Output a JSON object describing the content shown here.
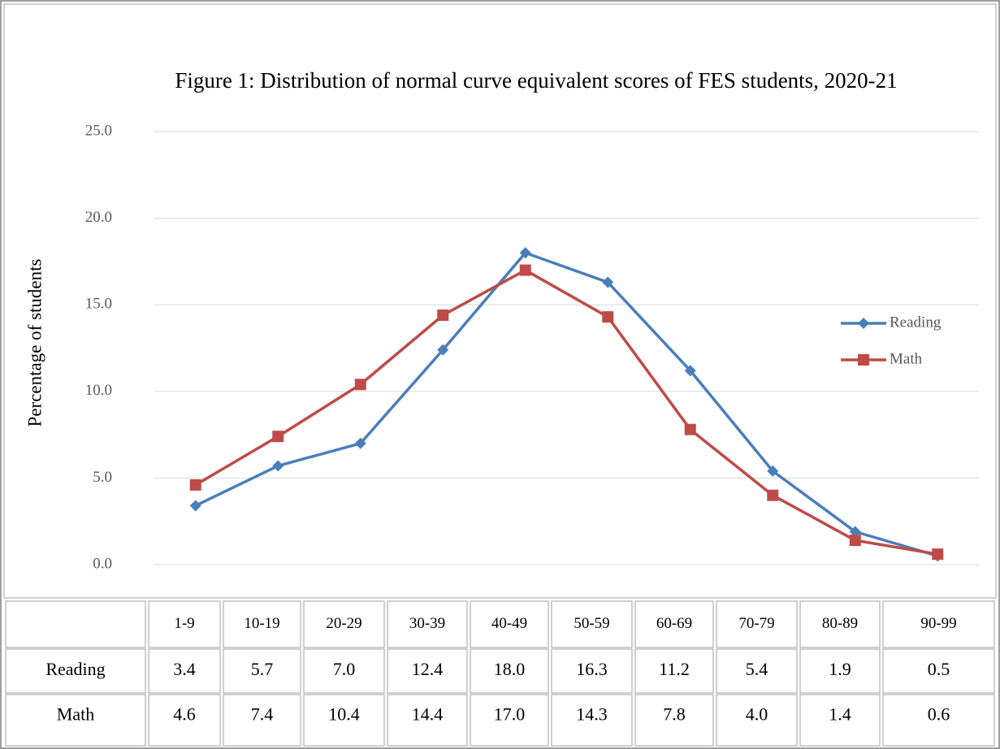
{
  "chart_data": {
    "type": "line",
    "title": "Figure 1: Distribution of normal curve equivalent scores of FES students, 2020-21",
    "y_label": "Percentage of students",
    "categories": [
      "1-9",
      "10-19",
      "20-29",
      "30-39",
      "40-49",
      "50-59",
      "60-69",
      "70-79",
      "80-89",
      "90-99"
    ],
    "series": [
      {
        "name": "Reading",
        "color": "#4a7ebb",
        "marker": "diamond",
        "values": [
          3.4,
          5.7,
          7.0,
          12.4,
          18.0,
          16.3,
          11.2,
          5.4,
          1.9,
          0.5
        ],
        "value_labels": [
          "3.4",
          "5.7",
          "7.0",
          "12.4",
          "18.0",
          "16.3",
          "11.2",
          "5.4",
          "1.9",
          "0.5"
        ]
      },
      {
        "name": "Math",
        "color": "#be4b48",
        "marker": "square",
        "values": [
          4.6,
          7.4,
          10.4,
          14.4,
          17.0,
          14.3,
          7.8,
          4.0,
          1.4,
          0.6
        ],
        "value_labels": [
          "4.6",
          "7.4",
          "10.4",
          "14.4",
          "17.0",
          "14.3",
          "7.8",
          "4.0",
          "1.4",
          "0.6"
        ]
      }
    ],
    "ylim": [
      0,
      25
    ],
    "yticks": [
      {
        "value": 0,
        "label": "0.0"
      },
      {
        "value": 5,
        "label": "5.0"
      },
      {
        "value": 10,
        "label": "10.0"
      },
      {
        "value": 15,
        "label": "15.0"
      },
      {
        "value": 20,
        "label": "20.0"
      },
      {
        "value": 25,
        "label": "25.0"
      }
    ],
    "grid": true,
    "legend": "right",
    "data_table": true
  }
}
